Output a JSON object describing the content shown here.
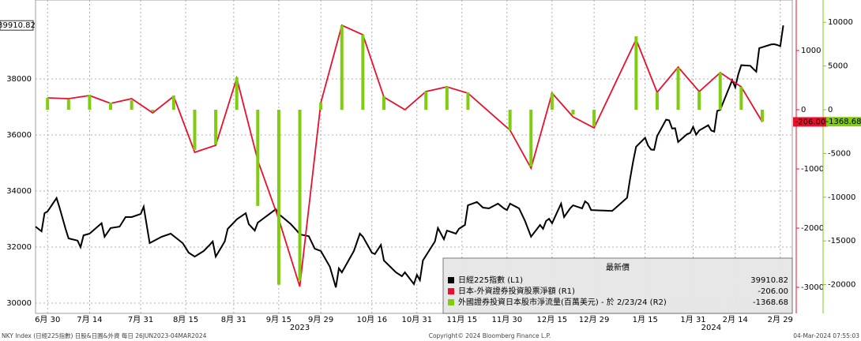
{
  "chart_data": {
    "type": "line",
    "xlim": [
      "2023-06-26",
      "2024-03-04"
    ],
    "xticks": [
      {
        "value": "2023-06-30",
        "label": "6月 30"
      },
      {
        "value": "2023-07-14",
        "label": "7月 14"
      },
      {
        "value": "2023-07-31",
        "label": "7月 31"
      },
      {
        "value": "2023-08-15",
        "label": "8月 15"
      },
      {
        "value": "2023-08-31",
        "label": "8月 31"
      },
      {
        "value": "2023-09-15",
        "label": "9月 15"
      },
      {
        "value": "2023-09-29",
        "label": "9月 29"
      },
      {
        "value": "2023-10-16",
        "label": "10月 16"
      },
      {
        "value": "2023-10-31",
        "label": "10月 31"
      },
      {
        "value": "2023-11-15",
        "label": "11月 15"
      },
      {
        "value": "2023-11-30",
        "label": "11月 30"
      },
      {
        "value": "2023-12-15",
        "label": "12月 15"
      },
      {
        "value": "2023-12-29",
        "label": "12月 29"
      },
      {
        "value": "2024-01-15",
        "label": "1月 15"
      },
      {
        "value": "2024-01-31",
        "label": "1月 31"
      },
      {
        "value": "2024-02-14",
        "label": "2月 14"
      },
      {
        "value": "2024-02-29",
        "label": "2月 29"
      }
    ],
    "year_labels": [
      {
        "value": "2023-09-22",
        "label": "2023"
      },
      {
        "value": "2024-02-06",
        "label": "2024"
      }
    ],
    "ylim": [
      29634,
      40817
    ],
    "yticks": [
      30000,
      32000,
      34000,
      36000,
      38000
    ],
    "y2lim": [
      -3440,
      1853
    ],
    "y2ticks": [
      1000,
      0,
      -1000,
      -2000,
      -3000
    ],
    "y3lim": [
      -23285,
      12545
    ],
    "y3ticks": [
      10000,
      5000,
      0,
      -5000,
      -10000,
      -15000,
      -20000
    ],
    "grid": true,
    "legend_title": "最新價",
    "series": [
      {
        "name": "日經225指數 (L1)",
        "type": "line",
        "color": "#000000",
        "axis": "y",
        "last_label": "39910.82",
        "x": [
          "2023-06-26",
          "2023-06-28",
          "2023-06-29",
          "2023-06-30",
          "2023-07-03",
          "2023-07-04",
          "2023-07-06",
          "2023-07-07",
          "2023-07-10",
          "2023-07-11",
          "2023-07-12",
          "2023-07-14",
          "2023-07-18",
          "2023-07-19",
          "2023-07-21",
          "2023-07-24",
          "2023-07-26",
          "2023-07-28",
          "2023-07-31",
          "2023-08-01",
          "2023-08-02",
          "2023-08-03",
          "2023-08-07",
          "2023-08-10",
          "2023-08-14",
          "2023-08-16",
          "2023-08-18",
          "2023-08-21",
          "2023-08-23",
          "2023-08-24",
          "2023-08-25",
          "2023-08-28",
          "2023-08-29",
          "2023-08-31",
          "2023-09-01",
          "2023-09-04",
          "2023-09-05",
          "2023-09-07",
          "2023-09-08",
          "2023-09-14",
          "2023-09-15",
          "2023-09-19",
          "2023-09-21",
          "2023-09-22",
          "2023-09-25",
          "2023-09-27",
          "2023-09-29",
          "2023-10-02",
          "2023-10-04",
          "2023-10-05",
          "2023-10-06",
          "2023-10-10",
          "2023-10-12",
          "2023-10-13",
          "2023-10-16",
          "2023-10-17",
          "2023-10-19",
          "2023-10-20",
          "2023-10-24",
          "2023-10-26",
          "2023-10-27",
          "2023-10-30",
          "2023-10-31",
          "2023-11-01",
          "2023-11-02",
          "2023-11-06",
          "2023-11-07",
          "2023-11-09",
          "2023-11-10",
          "2023-11-13",
          "2023-11-14",
          "2023-11-16",
          "2023-11-17",
          "2023-11-20",
          "2023-11-22",
          "2023-11-24",
          "2023-11-27",
          "2023-11-29",
          "2023-11-30",
          "2023-12-01",
          "2023-12-04",
          "2023-12-06",
          "2023-12-08",
          "2023-12-11",
          "2023-12-12",
          "2023-12-13",
          "2023-12-14",
          "2023-12-15",
          "2023-12-18",
          "2023-12-19",
          "2023-12-21",
          "2023-12-22",
          "2023-12-25",
          "2023-12-26",
          "2023-12-27",
          "2023-12-28",
          "2024-01-04",
          "2024-01-05",
          "2024-01-09",
          "2024-01-10",
          "2024-01-11",
          "2024-01-12",
          "2024-01-15",
          "2024-01-16",
          "2024-01-17",
          "2024-01-18",
          "2024-01-19",
          "2024-01-22",
          "2024-01-23",
          "2024-01-24",
          "2024-01-25",
          "2024-01-26",
          "2024-01-29",
          "2024-01-30",
          "2024-01-31",
          "2024-02-01",
          "2024-02-02",
          "2024-02-05",
          "2024-02-06",
          "2024-02-07",
          "2024-02-08",
          "2024-02-09",
          "2024-02-13",
          "2024-02-14",
          "2024-02-15",
          "2024-02-16",
          "2024-02-19",
          "2024-02-20",
          "2024-02-21",
          "2024-02-22",
          "2024-02-26",
          "2024-02-27",
          "2024-02-28",
          "2024-02-29",
          "2024-03-01"
        ],
        "values": [
          32730,
          32560,
          33210,
          33270,
          33750,
          33410,
          32650,
          32310,
          32230,
          32000,
          32420,
          32480,
          32850,
          32370,
          32680,
          32730,
          33070,
          33070,
          33180,
          33440,
          32790,
          32140,
          32370,
          32480,
          32140,
          31800,
          31660,
          31860,
          32080,
          32200,
          31660,
          32200,
          32650,
          32870,
          32990,
          33210,
          32820,
          32590,
          32870,
          33350,
          33180,
          32820,
          32590,
          32450,
          32390,
          31940,
          31860,
          31300,
          30560,
          31240,
          31100,
          31860,
          32480,
          32370,
          31800,
          31750,
          32080,
          31520,
          31100,
          30960,
          31100,
          30680,
          31010,
          30820,
          31520,
          32200,
          32680,
          32280,
          32590,
          32480,
          32650,
          32790,
          33490,
          33610,
          33410,
          33380,
          33550,
          33380,
          33320,
          33550,
          33380,
          32930,
          32370,
          32790,
          32650,
          32930,
          33010,
          32850,
          33550,
          33070,
          33380,
          33490,
          33380,
          33630,
          33550,
          33320,
          33290,
          33380,
          33760,
          34440,
          35050,
          35580,
          35900,
          35620,
          35480,
          35470,
          35960,
          36550,
          36520,
          36230,
          36240,
          35750,
          36030,
          36070,
          36290,
          36010,
          36160,
          36350,
          36160,
          36120,
          36860,
          36900,
          37960,
          37700,
          38160,
          38490,
          38470,
          38360,
          38260,
          39100,
          39230,
          39240,
          39210,
          39170,
          39910.82
        ]
      },
      {
        "name": "日本-外資證券投資股票淨額 (R1)",
        "type": "line",
        "color": "#e8102c",
        "axis": "y2",
        "last_label": "-206.00",
        "x": [
          "2023-06-30",
          "2023-07-07",
          "2023-07-14",
          "2023-07-21",
          "2023-07-28",
          "2023-08-04",
          "2023-08-11",
          "2023-08-18",
          "2023-08-25",
          "2023-09-01",
          "2023-09-08",
          "2023-09-15",
          "2023-09-22",
          "2023-09-29",
          "2023-10-06",
          "2023-10-13",
          "2023-10-20",
          "2023-10-27",
          "2023-11-03",
          "2023-11-10",
          "2023-11-17",
          "2023-12-01",
          "2023-12-08",
          "2023-12-15",
          "2023-12-22",
          "2023-12-29",
          "2024-01-12",
          "2024-01-19",
          "2024-01-26",
          "2024-02-02",
          "2024-02-09",
          "2024-02-16",
          "2024-02-23"
        ],
        "values": [
          200,
          187,
          240,
          107,
          187,
          -53,
          227,
          -720,
          -600,
          533,
          -853,
          -1850,
          -2987,
          120,
          1427,
          1267,
          213,
          0,
          307,
          387,
          280,
          -347,
          -987,
          280,
          -120,
          -307,
          1187,
          293,
          720,
          307,
          627,
          387,
          -206
        ]
      },
      {
        "name": "外國證券投資日本股市淨流量(百萬美元) - 於 2/23/24 (R2)",
        "type": "bar",
        "color": "#80cc10",
        "axis": "y3",
        "last_label": "-1368.68",
        "x": [
          "2023-06-30",
          "2023-07-07",
          "2023-07-14",
          "2023-07-21",
          "2023-07-28",
          "2023-08-04",
          "2023-08-11",
          "2023-08-18",
          "2023-08-25",
          "2023-09-01",
          "2023-09-08",
          "2023-09-15",
          "2023-09-22",
          "2023-09-29",
          "2023-10-06",
          "2023-10-13",
          "2023-10-20",
          "2023-10-27",
          "2023-11-03",
          "2023-11-10",
          "2023-11-17",
          "2023-12-01",
          "2023-12-08",
          "2023-12-15",
          "2023-12-22",
          "2023-12-29",
          "2024-01-12",
          "2024-01-19",
          "2024-01-26",
          "2024-02-02",
          "2024-02-09",
          "2024-02-16",
          "2024-02-23"
        ],
        "values": [
          1353,
          1170,
          1710,
          810,
          1080,
          -180,
          1620,
          -4600,
          -3970,
          3700,
          -11000,
          -20000,
          -19500,
          810,
          9650,
          8570,
          1530,
          -100,
          2070,
          2620,
          1980,
          -2350,
          -6500,
          1900,
          -540,
          -1900,
          8390,
          1980,
          4780,
          2070,
          4240,
          2620,
          -1368.68
        ]
      }
    ],
    "footer_left": "NKY Index (日經225指數) 日股&日圓&外資 每日 26JUN2023-04MAR2024",
    "footer_center": "Copyright© 2024 Bloomberg Finance L.P.",
    "footer_right": "04-Mar-2024 07:55:03"
  }
}
